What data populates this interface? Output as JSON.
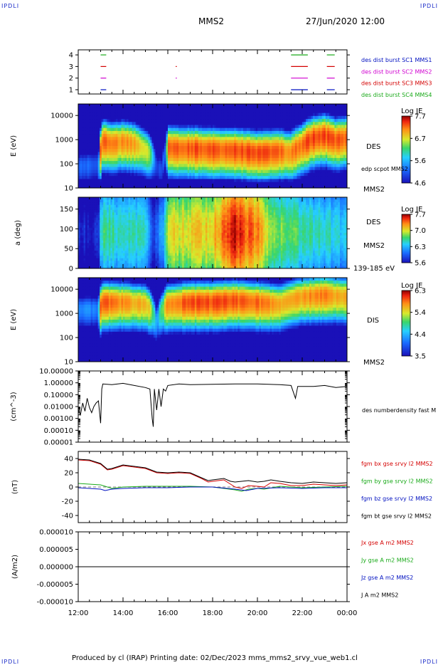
{
  "header": {
    "corner_tl": "IPDLI",
    "corner_tr": "IPDLI",
    "corner_bl": "IPDLI",
    "corner_br": "IPDLI",
    "spacecraft": "MMS2",
    "datetime": "27/Jun/2020 12:00"
  },
  "footer": {
    "text": "Produced by cl (IRAP)   Printing date: 02/Dec/2023   mms_mms2_srvy_vue_web1.cl"
  },
  "colors": {
    "red": "#d40000",
    "green": "#1aaa1a",
    "blue": "#0010c0",
    "magenta": "#d000d0",
    "black": "#000000"
  },
  "chart_data": [
    {
      "type": "timeline",
      "id": "burst",
      "yticks": [
        "1",
        "2",
        "3",
        "4"
      ],
      "labels": [
        {
          "text": "des dist burst SC1 MMS1",
          "color": "#0010c0"
        },
        {
          "text": "des dist burst SC2 MMS2",
          "color": "#d000d0"
        },
        {
          "text": "des dist burst SC3 MMS3",
          "color": "#d40000"
        },
        {
          "text": "des dist burst SC4 MMS4",
          "color": "#1aaa1a"
        }
      ],
      "segments": [
        {
          "level": 4,
          "t0": 13.0,
          "t1": 13.25,
          "color": "#1aaa1a"
        },
        {
          "level": 3,
          "t0": 13.0,
          "t1": 13.25,
          "color": "#d40000"
        },
        {
          "level": 2,
          "t0": 13.0,
          "t1": 13.25,
          "color": "#d000d0"
        },
        {
          "level": 1,
          "t0": 13.0,
          "t1": 13.25,
          "color": "#0010c0"
        },
        {
          "level": 3,
          "t0": 16.35,
          "t1": 16.4,
          "color": "#d40000"
        },
        {
          "level": 2,
          "t0": 16.35,
          "t1": 16.4,
          "color": "#d000d0"
        },
        {
          "level": 4,
          "t0": 21.5,
          "t1": 22.25,
          "color": "#1aaa1a"
        },
        {
          "level": 3,
          "t0": 21.5,
          "t1": 22.25,
          "color": "#d40000"
        },
        {
          "level": 2,
          "t0": 21.5,
          "t1": 22.25,
          "color": "#d000d0"
        },
        {
          "level": 1,
          "t0": 21.5,
          "t1": 22.25,
          "color": "#0010c0"
        },
        {
          "level": 4,
          "t0": 23.1,
          "t1": 23.45,
          "color": "#1aaa1a"
        },
        {
          "level": 3,
          "t0": 23.1,
          "t1": 23.45,
          "color": "#d40000"
        },
        {
          "level": 2,
          "t0": 23.1,
          "t1": 23.45,
          "color": "#d000d0"
        },
        {
          "level": 1,
          "t0": 23.1,
          "t1": 23.45,
          "color": "#0010c0"
        }
      ]
    },
    {
      "type": "heatmap",
      "id": "des-energy",
      "ylabel": "E (eV)",
      "yscale": "log",
      "ylim": [
        10,
        30000
      ],
      "yticks": [
        "10",
        "100",
        "1000",
        "10000"
      ],
      "right_labels": [
        "DES",
        "edp scpot MMS2",
        "MMS2"
      ],
      "colorbar": {
        "title": "Log JE",
        "min": 4.6,
        "max": 7.7,
        "ticks": [
          "7.7",
          "6.7",
          "5.6",
          "4.6"
        ]
      },
      "peak_energy_eV": [
        [
          12.0,
          80
        ],
        [
          12.5,
          90
        ],
        [
          12.95,
          100
        ],
        [
          13.1,
          900
        ],
        [
          13.5,
          700
        ],
        [
          14.0,
          850
        ],
        [
          14.5,
          700
        ],
        [
          15.0,
          400
        ],
        [
          15.25,
          250
        ],
        [
          15.5,
          80
        ],
        [
          15.75,
          60
        ],
        [
          16.0,
          500
        ],
        [
          16.5,
          450
        ],
        [
          17.0,
          450
        ],
        [
          18.0,
          400
        ],
        [
          19.0,
          380
        ],
        [
          20.0,
          300
        ],
        [
          20.5,
          320
        ],
        [
          21.0,
          350
        ],
        [
          21.5,
          300
        ],
        [
          22.0,
          600
        ],
        [
          22.5,
          1200
        ],
        [
          23.0,
          1500
        ],
        [
          23.5,
          1000
        ],
        [
          24.0,
          1200
        ]
      ],
      "intensity_mean": [
        [
          12.0,
          5.2
        ],
        [
          12.9,
          5.1
        ],
        [
          13.0,
          7.2
        ],
        [
          14.5,
          7.0
        ],
        [
          15.2,
          6.5
        ],
        [
          15.5,
          5.0
        ],
        [
          15.9,
          5.2
        ],
        [
          16.0,
          7.3
        ],
        [
          20.5,
          7.3
        ],
        [
          21.5,
          7.1
        ],
        [
          22.5,
          7.4
        ],
        [
          24.0,
          7.2
        ]
      ]
    },
    {
      "type": "heatmap",
      "id": "des-pitch",
      "ylabel": "a (deg)",
      "ylim": [
        0,
        180
      ],
      "yticks": [
        "0",
        "50",
        "100",
        "150"
      ],
      "right_labels": [
        "DES",
        "MMS2",
        "139-185 eV"
      ],
      "colorbar": {
        "title": "Log JE",
        "min": 5.6,
        "max": 7.7,
        "ticks": [
          "7.7",
          "7.0",
          "6.3",
          "5.6"
        ]
      },
      "intensity_mean": [
        [
          12.0,
          5.7
        ],
        [
          12.9,
          5.7
        ],
        [
          13.0,
          6.6
        ],
        [
          15.0,
          6.5
        ],
        [
          15.4,
          5.8
        ],
        [
          15.8,
          6.3
        ],
        [
          16.0,
          7.0
        ],
        [
          18.0,
          7.1
        ],
        [
          19.0,
          7.6
        ],
        [
          20.0,
          7.3
        ],
        [
          20.5,
          6.9
        ],
        [
          22.0,
          6.6
        ],
        [
          24.0,
          6.4
        ]
      ]
    },
    {
      "type": "heatmap",
      "id": "dis-energy",
      "ylabel": "E (eV)",
      "yscale": "log",
      "ylim": [
        10,
        30000
      ],
      "yticks": [
        "10",
        "100",
        "1000",
        "10000"
      ],
      "right_labels": [
        "DIS",
        "MMS2"
      ],
      "colorbar": {
        "title": "Log JE",
        "min": 3.5,
        "max": 6.3,
        "ticks": [
          "6.3",
          "5.4",
          "4.4",
          "3.5"
        ]
      },
      "peak_energy_eV": [
        [
          12.0,
          1500
        ],
        [
          12.95,
          1500
        ],
        [
          13.1,
          3000
        ],
        [
          14.0,
          3000
        ],
        [
          15.0,
          2500
        ],
        [
          15.5,
          400
        ],
        [
          16.0,
          2500
        ],
        [
          17.0,
          3000
        ],
        [
          18.0,
          3000
        ],
        [
          19.0,
          3500
        ],
        [
          20.0,
          3000
        ],
        [
          21.0,
          2500
        ],
        [
          22.0,
          5000
        ],
        [
          23.0,
          6000
        ],
        [
          24.0,
          5000
        ]
      ],
      "intensity_mean": [
        [
          12.0,
          4.2
        ],
        [
          12.9,
          4.2
        ],
        [
          13.0,
          5.9
        ],
        [
          15.2,
          5.5
        ],
        [
          15.5,
          4.3
        ],
        [
          16.0,
          5.8
        ],
        [
          18.0,
          6.0
        ],
        [
          20.5,
          5.8
        ],
        [
          21.5,
          5.6
        ],
        [
          22.5,
          5.8
        ],
        [
          24.0,
          5.6
        ]
      ]
    },
    {
      "type": "line",
      "id": "density",
      "ylabel": "(cm^-3)",
      "yscale": "log",
      "ylim": [
        1e-05,
        10
      ],
      "yticks": [
        "10.00000",
        "1.00000",
        "0.10000",
        "0.01000",
        "0.00100",
        "0.00010",
        "0.00001"
      ],
      "right_labels": [
        "des numberdensity fast M"
      ],
      "series": [
        {
          "color": "#000000",
          "points": [
            [
              12.0,
              0.005
            ],
            [
              12.1,
              0.002
            ],
            [
              12.2,
              0.02
            ],
            [
              12.3,
              0.004
            ],
            [
              12.4,
              0.05
            ],
            [
              12.5,
              0.008
            ],
            [
              12.6,
              0.003
            ],
            [
              12.7,
              0.01
            ],
            [
              12.8,
              0.02
            ],
            [
              12.9,
              0.03
            ],
            [
              13.0,
              0.0004
            ],
            [
              13.05,
              0.3
            ],
            [
              13.1,
              0.8
            ],
            [
              13.5,
              0.7
            ],
            [
              14.0,
              0.9
            ],
            [
              14.5,
              0.6
            ],
            [
              15.0,
              0.4
            ],
            [
              15.2,
              0.3
            ],
            [
              15.3,
              0.001
            ],
            [
              15.35,
              0.0002
            ],
            [
              15.4,
              0.3
            ],
            [
              15.5,
              0.005
            ],
            [
              15.6,
              0.3
            ],
            [
              15.7,
              0.01
            ],
            [
              15.8,
              0.3
            ],
            [
              15.9,
              0.2
            ],
            [
              16.0,
              0.6
            ],
            [
              16.5,
              0.8
            ],
            [
              17.0,
              0.7
            ],
            [
              18.0,
              0.75
            ],
            [
              19.0,
              0.8
            ],
            [
              20.0,
              0.8
            ],
            [
              21.0,
              0.7
            ],
            [
              21.5,
              0.6
            ],
            [
              21.7,
              0.05
            ],
            [
              21.8,
              0.5
            ],
            [
              22.5,
              0.5
            ],
            [
              23.0,
              0.6
            ],
            [
              23.5,
              0.4
            ],
            [
              24.0,
              0.5
            ]
          ]
        }
      ]
    },
    {
      "type": "line",
      "id": "fgm",
      "ylabel": "(nT)",
      "ylim": [
        -50,
        50
      ],
      "yticks": [
        "40",
        "20",
        "0",
        "-20",
        "-40"
      ],
      "series": [
        {
          "name": "fgm bx gse srvy l2 MMS2",
          "color": "#d40000",
          "points": [
            [
              12.0,
              38
            ],
            [
              12.5,
              37
            ],
            [
              13.0,
              32
            ],
            [
              13.3,
              24
            ],
            [
              13.5,
              25
            ],
            [
              14.0,
              30
            ],
            [
              14.5,
              28
            ],
            [
              15.0,
              26
            ],
            [
              15.5,
              20
            ],
            [
              16.0,
              19
            ],
            [
              16.5,
              20
            ],
            [
              17.0,
              19
            ],
            [
              17.5,
              12
            ],
            [
              17.8,
              7
            ],
            [
              18.0,
              8
            ],
            [
              18.5,
              10
            ],
            [
              18.8,
              4
            ],
            [
              19.0,
              0
            ],
            [
              19.3,
              -2
            ],
            [
              19.6,
              2
            ],
            [
              20.0,
              1
            ],
            [
              20.3,
              0
            ],
            [
              20.6,
              6
            ],
            [
              21.0,
              5
            ],
            [
              21.5,
              2
            ],
            [
              22.0,
              2
            ],
            [
              22.5,
              4
            ],
            [
              23.0,
              3
            ],
            [
              23.5,
              2
            ],
            [
              24.0,
              3
            ]
          ]
        },
        {
          "name": "fgm by gse srvy l2 MMS2",
          "color": "#1aaa1a",
          "points": [
            [
              12.0,
              5
            ],
            [
              12.5,
              4
            ],
            [
              13.0,
              3
            ],
            [
              13.5,
              -2
            ],
            [
              14.0,
              0
            ],
            [
              15.0,
              1
            ],
            [
              16.0,
              1
            ],
            [
              17.0,
              1
            ],
            [
              18.0,
              0
            ],
            [
              19.0,
              -4
            ],
            [
              19.3,
              -6
            ],
            [
              19.6,
              -3
            ],
            [
              20.0,
              -2
            ],
            [
              20.3,
              -3
            ],
            [
              21.0,
              1
            ],
            [
              22.0,
              -1
            ],
            [
              23.0,
              0
            ],
            [
              24.0,
              1
            ]
          ]
        },
        {
          "name": "fgm bz gse srvy l2 MMS2",
          "color": "#0010c0",
          "points": [
            [
              12.0,
              -1
            ],
            [
              12.5,
              -2
            ],
            [
              13.0,
              -3
            ],
            [
              13.2,
              -5
            ],
            [
              13.5,
              -3
            ],
            [
              14.0,
              -2
            ],
            [
              15.0,
              -1
            ],
            [
              16.0,
              -1
            ],
            [
              17.0,
              0
            ],
            [
              18.0,
              0
            ],
            [
              19.0,
              -3
            ],
            [
              19.5,
              -5
            ],
            [
              20.0,
              -2
            ],
            [
              21.0,
              -1
            ],
            [
              22.0,
              -2
            ],
            [
              23.0,
              -1
            ],
            [
              24.0,
              -1
            ]
          ]
        },
        {
          "name": "fgm bt gse srvy l2 MMS2",
          "color": "#000000",
          "points": [
            [
              12.0,
              39
            ],
            [
              12.5,
              38
            ],
            [
              13.0,
              33
            ],
            [
              13.3,
              25
            ],
            [
              13.5,
              26
            ],
            [
              14.0,
              31
            ],
            [
              14.5,
              29
            ],
            [
              15.0,
              27
            ],
            [
              15.5,
              21
            ],
            [
              16.0,
              20
            ],
            [
              16.5,
              21
            ],
            [
              17.0,
              20
            ],
            [
              17.5,
              13
            ],
            [
              17.8,
              9
            ],
            [
              18.0,
              10
            ],
            [
              18.5,
              12
            ],
            [
              18.8,
              8
            ],
            [
              19.0,
              7
            ],
            [
              19.3,
              8
            ],
            [
              19.6,
              9
            ],
            [
              20.0,
              7
            ],
            [
              20.3,
              8
            ],
            [
              20.6,
              10
            ],
            [
              21.0,
              8
            ],
            [
              21.5,
              6
            ],
            [
              22.0,
              5
            ],
            [
              22.5,
              7
            ],
            [
              23.0,
              6
            ],
            [
              23.5,
              5
            ],
            [
              24.0,
              6
            ]
          ]
        }
      ]
    },
    {
      "type": "line",
      "id": "current",
      "ylabel": "(A/m2)",
      "ylim": [
        -1e-05,
        1e-05
      ],
      "yticks": [
        "0.000010",
        "0.000005",
        "0.000000",
        "-0.000005",
        "-0.000010"
      ],
      "xticks": [
        "12:00",
        "14:00",
        "16:00",
        "18:00",
        "20:00",
        "22:00",
        "00:00"
      ],
      "xlim_hours": [
        12,
        24
      ],
      "series": [
        {
          "name": "Jx gse A m2 MMS2",
          "color": "#d40000",
          "points": [
            [
              12,
              0
            ],
            [
              24,
              0
            ]
          ]
        },
        {
          "name": "Jy gse A m2 MMS2",
          "color": "#1aaa1a",
          "points": [
            [
              12,
              0
            ],
            [
              24,
              0
            ]
          ]
        },
        {
          "name": "Jz gse A m2 MMS2",
          "color": "#0010c0",
          "points": [
            [
              12,
              0
            ],
            [
              24,
              0
            ]
          ]
        },
        {
          "name": "J A m2 MMS2",
          "color": "#000000",
          "points": [
            [
              12,
              0
            ],
            [
              24,
              0
            ]
          ]
        }
      ]
    }
  ]
}
